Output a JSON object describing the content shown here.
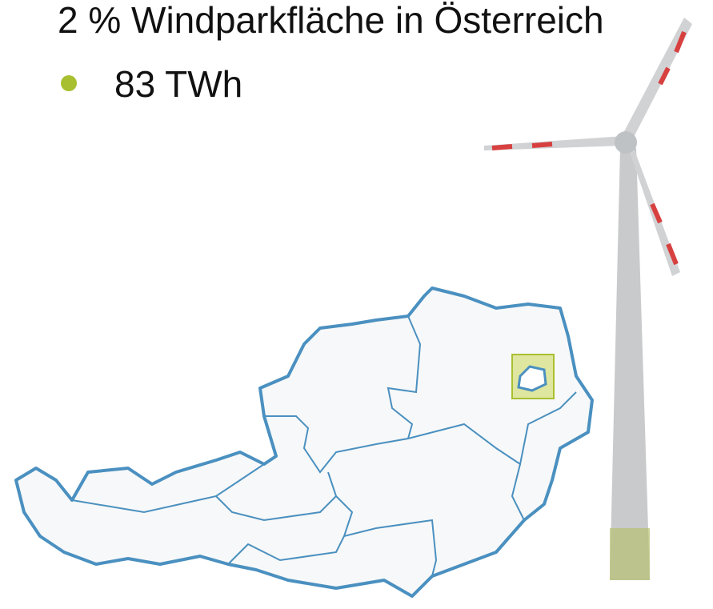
{
  "bullets": [
    "2 % Windparkfläche in Österreich",
    "83 TWh"
  ]
}
